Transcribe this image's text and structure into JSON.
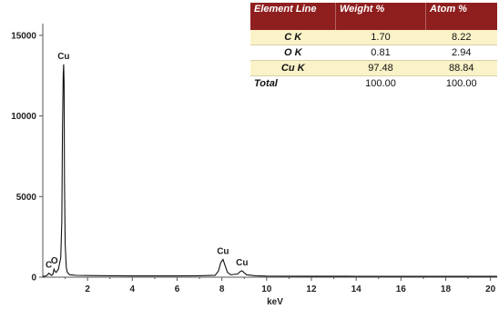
{
  "chart_data": {
    "type": "line",
    "xlabel": "keV",
    "ylabel": "",
    "xlim": [
      0,
      20.3
    ],
    "ylim": [
      0,
      15500
    ],
    "x_ticks": [
      2,
      4,
      6,
      8,
      10,
      12,
      14,
      16,
      18,
      20
    ],
    "y_ticks": [
      0,
      5000,
      10000,
      15000
    ],
    "grid": false,
    "series": [
      {
        "x": [
          0.0,
          0.1,
          0.2,
          0.27,
          0.3,
          0.35,
          0.4,
          0.45,
          0.5,
          0.55,
          0.6,
          0.7,
          0.8,
          0.85,
          0.88,
          0.91,
          0.93,
          0.95,
          0.97,
          1.0,
          1.05,
          1.1,
          1.2,
          1.5,
          2.0,
          3.0,
          4.0,
          5.0,
          6.0,
          7.0,
          7.7,
          7.85,
          7.95,
          8.05,
          8.15,
          8.25,
          8.4,
          8.7,
          8.82,
          8.9,
          8.98,
          9.1,
          9.5,
          10.0,
          12.0,
          14.0,
          16.0,
          18.0,
          20.3
        ],
        "y": [
          50,
          70,
          120,
          250,
          220,
          160,
          110,
          180,
          500,
          350,
          300,
          500,
          1200,
          3500,
          9000,
          12500,
          13200,
          12000,
          6000,
          2000,
          600,
          300,
          150,
          110,
          100,
          90,
          80,
          80,
          80,
          90,
          120,
          400,
          900,
          1100,
          700,
          300,
          150,
          200,
          350,
          400,
          300,
          150,
          90,
          70,
          60,
          55,
          50,
          50,
          50
        ]
      }
    ],
    "peak_labels": [
      {
        "text": "C",
        "x": 0.27,
        "y": 250
      },
      {
        "text": "O",
        "x": 0.52,
        "y": 500
      },
      {
        "text": "Cu",
        "x": 0.93,
        "y": 13200
      },
      {
        "text": "Cu",
        "x": 8.05,
        "y": 1100
      },
      {
        "text": "Cu",
        "x": 8.9,
        "y": 400
      }
    ],
    "table": {
      "headers": [
        "Element Line",
        "Weight %",
        "Atom %"
      ],
      "rows": [
        {
          "element": "C K",
          "weight": "1.70",
          "atom": "8.22"
        },
        {
          "element": "O K",
          "weight": "0.81",
          "atom": "2.94"
        },
        {
          "element": "Cu K",
          "weight": "97.48",
          "atom": "88.84"
        },
        {
          "element": "Total",
          "weight": "100.00",
          "atom": "100.00"
        }
      ]
    },
    "colors": {
      "line": "#111111",
      "axis": "#555555",
      "table_header": "#8f1f1f",
      "table_stripe": "#fbf3c8"
    }
  }
}
